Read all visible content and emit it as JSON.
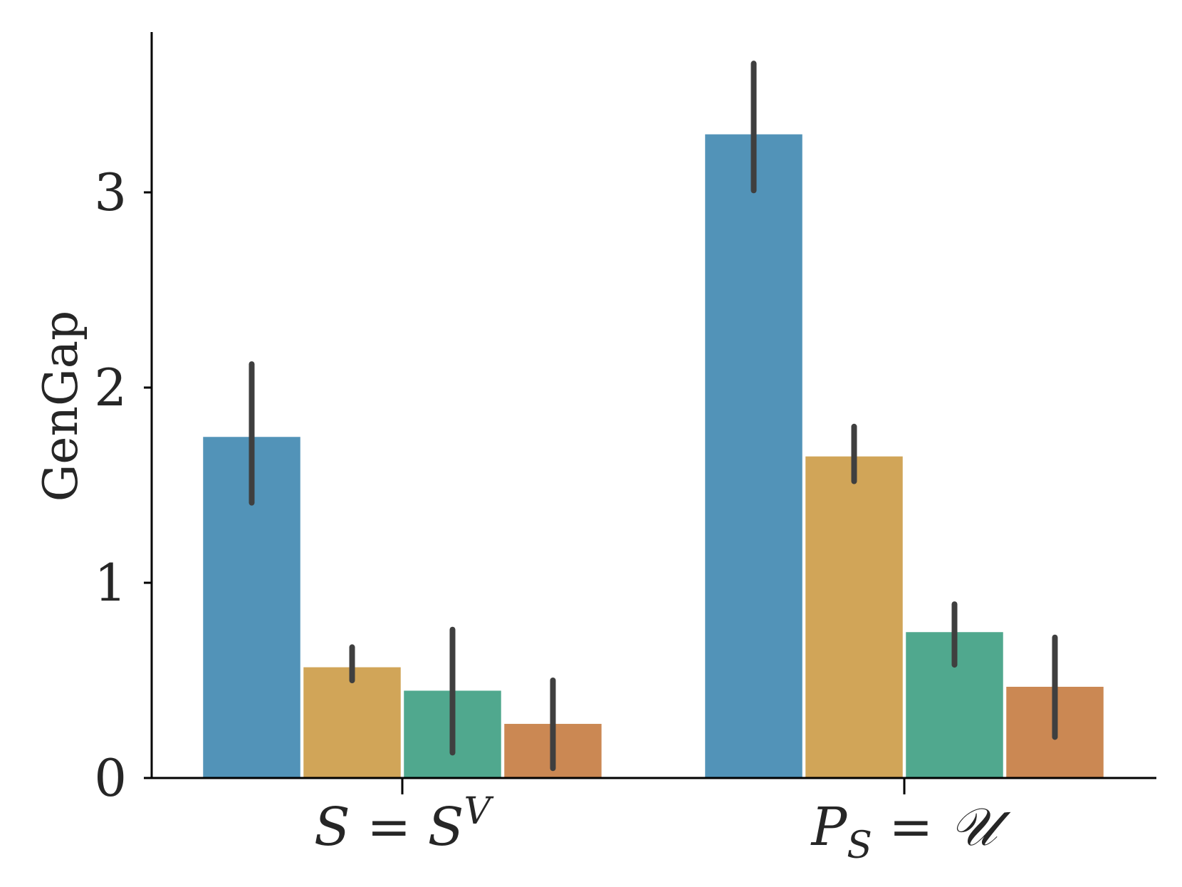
{
  "chart_data": {
    "type": "bar",
    "categories": [
      "S = S^V",
      "P_S = 𝒰"
    ],
    "category_parts": [
      {
        "main": "S = S",
        "sup": "V",
        "sub": "",
        "rest": ""
      },
      {
        "main": "P",
        "sup": "",
        "sub": "S",
        "rest": " = 𝒰"
      }
    ],
    "ylabel": "GenGap",
    "xlabel": "",
    "ylim": [
      0,
      3.8
    ],
    "yticks": [
      0,
      1,
      2,
      3
    ],
    "grid": false,
    "legend": "none",
    "series": [
      {
        "color": "#5293b8",
        "values": [
          1.75,
          3.3
        ],
        "err_low": [
          1.41,
          3.01
        ],
        "err_high": [
          2.12,
          3.66
        ]
      },
      {
        "color": "#d1a558",
        "values": [
          0.57,
          1.65
        ],
        "err_low": [
          0.5,
          1.52
        ],
        "err_high": [
          0.67,
          1.8
        ]
      },
      {
        "color": "#50a88e",
        "values": [
          0.45,
          0.75
        ],
        "err_low": [
          0.13,
          0.58
        ],
        "err_high": [
          0.76,
          0.89
        ]
      },
      {
        "color": "#cb8853",
        "values": [
          0.28,
          0.47
        ],
        "err_low": [
          0.05,
          0.21
        ],
        "err_high": [
          0.5,
          0.72
        ]
      }
    ]
  }
}
